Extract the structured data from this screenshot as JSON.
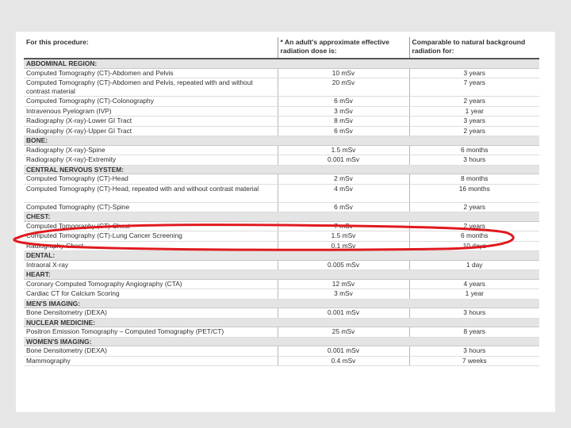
{
  "table": {
    "headers": [
      "For this procedure:",
      "* An adult's approximate effective radiation dose is:",
      "Comparable to natural background radiation for:"
    ],
    "sections": [
      {
        "title": "ABDOMINAL REGION:",
        "rows": [
          [
            "Computed Tomography (CT)-Abdomen and Pelvis",
            "10 mSv",
            "3 years"
          ],
          [
            "Computed Tomography (CT)-Abdomen and Pelvis, repeated with and without contrast material",
            "20 mSv",
            "7 years"
          ],
          [
            "Computed Tomography (CT)-Colonography",
            "6 mSv",
            "2 years"
          ],
          [
            "Intravenous Pyelogram (IVP)",
            "3 mSv",
            "1 year"
          ],
          [
            "Radiography (X-ray)-Lower GI Tract",
            "8 mSv",
            "3 years"
          ],
          [
            "Radiography (X-ray)-Upper GI Tract",
            "6 mSv",
            "2 years"
          ]
        ]
      },
      {
        "title": "BONE:",
        "rows": [
          [
            "Radiography (X-ray)-Spine",
            "1.5 mSv",
            "6 months"
          ],
          [
            "Radiography (X-ray)-Extremity",
            "0.001 mSv",
            "3 hours"
          ]
        ]
      },
      {
        "title": "CENTRAL NERVOUS SYSTEM:",
        "rows": [
          [
            "Computed Tomography (CT)-Head",
            "2 mSv",
            "8 months"
          ],
          [
            "Computed Tomography (CT)-Head, repeated with and without contrast material",
            "4 mSv",
            "16 months"
          ],
          [
            "Computed Tomography (CT)-Spine",
            "6 mSv",
            "2 years"
          ]
        ]
      },
      {
        "title": "CHEST:",
        "rows": [
          [
            "Computed Tomography (CT)-Chest",
            "7 mSv",
            "2 years"
          ],
          [
            "Computed Tomography (CT)-Lung Cancer Screening",
            "1.5 mSv",
            "6 months"
          ],
          [
            "Radiography-Chest",
            "0.1 mSv",
            "10 days"
          ]
        ]
      },
      {
        "title": "DENTAL:",
        "rows": [
          [
            "Intraoral X-ray",
            "0.005 mSv",
            "1 day"
          ]
        ]
      },
      {
        "title": "HEART:",
        "rows": [
          [
            "Coronary Computed Tomography Angiography (CTA)",
            "12 mSv",
            "4 years"
          ],
          [
            "Cardiac CT for Calcium Scoring",
            "3 mSv",
            "1 year"
          ]
        ]
      },
      {
        "title": "MEN'S IMAGING:",
        "rows": [
          [
            "Bone Densitometry (DEXA)",
            "0.001 mSv",
            "3 hours"
          ]
        ]
      },
      {
        "title": "NUCLEAR MEDICINE:",
        "rows": [
          [
            "Positron Emission Tomography – Computed Tomography (PET/CT)",
            "25 mSv",
            "8 years"
          ]
        ]
      },
      {
        "title": "WOMEN'S IMAGING:",
        "rows": [
          [
            "Bone Densitometry (DEXA)",
            "0.001 mSv",
            "3 hours"
          ],
          [
            "Mammography",
            "0.4 mSv",
            "7 weeks"
          ]
        ]
      }
    ]
  },
  "annotation": {
    "shape": "hand-drawn ellipse",
    "color": "#e0191f",
    "highlights": "Radiography-Chest"
  }
}
